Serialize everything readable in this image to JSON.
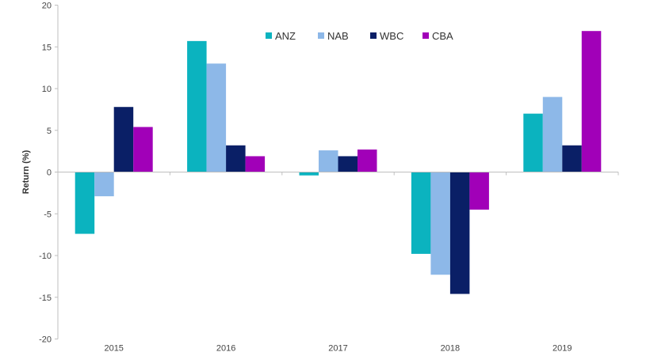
{
  "chart_data": {
    "type": "bar",
    "title": "",
    "xlabel": "",
    "ylabel": "Return (%)",
    "ylim": [
      -20,
      20
    ],
    "yticks": [
      20,
      15,
      10,
      5,
      0,
      -5,
      -10,
      -15,
      -20
    ],
    "categories": [
      "2015",
      "2016",
      "2017",
      "2018",
      "2019"
    ],
    "legend_position": "top-center",
    "grid": false,
    "series": [
      {
        "name": "ANZ",
        "color": "#0bb3bf",
        "values": [
          -7.4,
          15.7,
          -0.4,
          -9.8,
          7.0
        ]
      },
      {
        "name": "NAB",
        "color": "#8db8e8",
        "values": [
          -2.9,
          13.0,
          2.6,
          -12.3,
          9.0
        ]
      },
      {
        "name": "WBC",
        "color": "#0a1f66",
        "values": [
          7.8,
          3.2,
          1.9,
          -14.6,
          3.2
        ]
      },
      {
        "name": "CBA",
        "color": "#a100b8",
        "values": [
          5.4,
          1.9,
          2.7,
          -4.5,
          16.9
        ]
      }
    ]
  }
}
